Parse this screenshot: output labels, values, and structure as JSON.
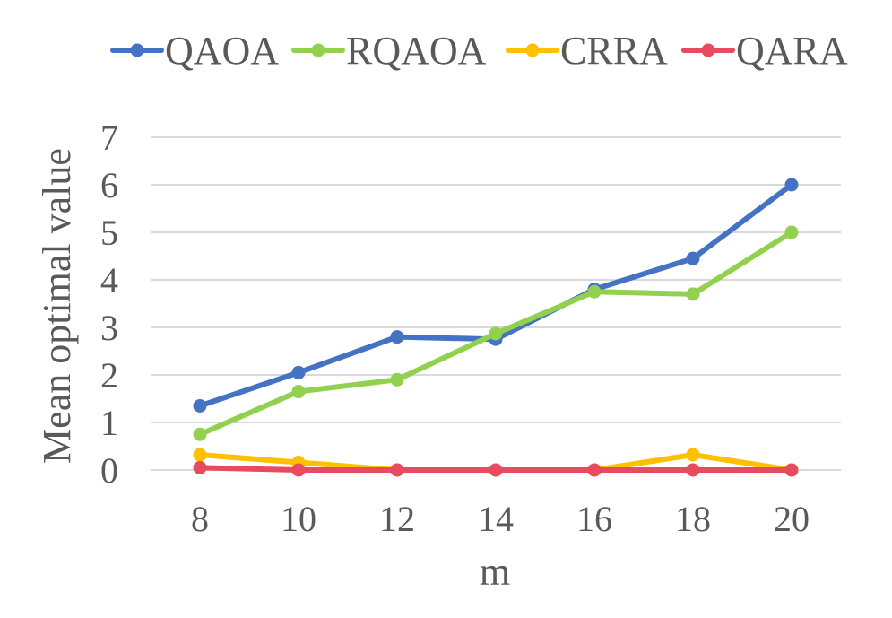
{
  "chart_data": {
    "type": "line",
    "title": "",
    "xlabel": "m",
    "ylabel": "Mean optimal value",
    "categories": [
      "8",
      "10",
      "12",
      "14",
      "16",
      "18",
      "20"
    ],
    "ylim": [
      0,
      7
    ],
    "yticks": [
      "0",
      "1",
      "2",
      "3",
      "4",
      "5",
      "6",
      "7"
    ],
    "grid": true,
    "legend_position": "top",
    "series": [
      {
        "name": "QAOA",
        "color": "#4472c4",
        "values": [
          1.35,
          2.05,
          2.8,
          2.75,
          3.8,
          4.45,
          6.0
        ]
      },
      {
        "name": "RQAOA",
        "color": "#92d050",
        "values": [
          0.75,
          1.65,
          1.9,
          2.87,
          3.75,
          3.7,
          5.0
        ]
      },
      {
        "name": "CRRA",
        "color": "#ffc000",
        "values": [
          0.32,
          0.16,
          0.0,
          0.0,
          0.0,
          0.32,
          0.0
        ]
      },
      {
        "name": "QARA",
        "color": "#e84a5f",
        "values": [
          0.05,
          0.0,
          0.0,
          0.0,
          0.0,
          0.0,
          0.0
        ]
      }
    ]
  }
}
